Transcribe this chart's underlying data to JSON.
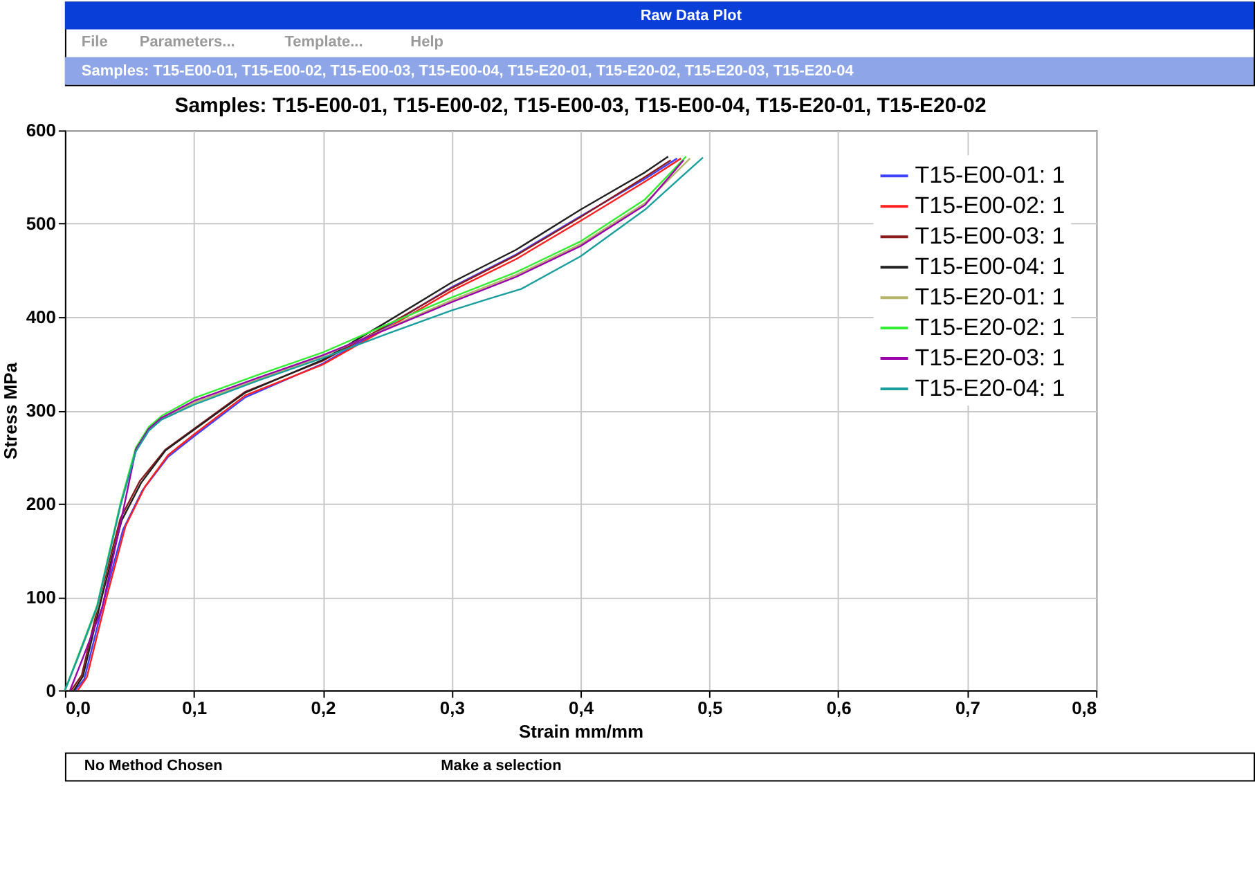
{
  "chart_data": {
    "type": "line",
    "title": "Samples: T15-E00-01, T15-E00-02, T15-E00-03, T15-E00-04, T15-E20-01, T15-E20-02",
    "subtitle": "Samples: T15-E00-01, T15-E00-02, T15-E00-03, T15-E00-04, T15-E20-01, T15-E20-02, T15-E20-03, T15-E20-04",
    "annotations": [
      "Raw Data Plot",
      "File",
      "Parameters...",
      "Template...",
      "Help",
      "No Method Chosen",
      "Make a selection"
    ],
    "xlabel": "Strain mm/mm",
    "ylabel": "Stress MPa",
    "xlim": [
      0,
      0.8
    ],
    "ylim": [
      0,
      600
    ],
    "xticks": [
      {
        "value": 0,
        "label": "0,0"
      },
      {
        "value": 0.1,
        "label": "0,1"
      },
      {
        "value": 0.2,
        "label": "0,2"
      },
      {
        "value": 0.3,
        "label": "0,3"
      },
      {
        "value": 0.4,
        "label": "0,4"
      },
      {
        "value": 0.5,
        "label": "0,5"
      },
      {
        "value": 0.6,
        "label": "0,6"
      },
      {
        "value": 0.7,
        "label": "0,7"
      },
      {
        "value": 0.8,
        "label": "0,8"
      }
    ],
    "yticks": [
      0,
      100,
      200,
      300,
      400,
      500,
      600
    ],
    "grid": true,
    "legend": "top right",
    "series": [
      {
        "name": "T15-E00-01: 1",
        "color": "#4040ff",
        "x": [
          0.008,
          0.015,
          0.03,
          0.045,
          0.06,
          0.08,
          0.1,
          0.14,
          0.2,
          0.25,
          0.3,
          0.35,
          0.4,
          0.45,
          0.475
        ],
        "values": [
          0,
          12,
          95,
          172,
          214,
          250,
          272,
          314,
          350,
          390,
          432,
          467,
          508,
          548,
          570
        ]
      },
      {
        "name": "T15-E00-02: 1",
        "color": "#ff2020",
        "x": [
          0.01,
          0.017,
          0.032,
          0.047,
          0.062,
          0.08,
          0.1,
          0.14,
          0.2,
          0.25,
          0.3,
          0.35,
          0.4,
          0.45,
          0.478
        ],
        "values": [
          0,
          14,
          98,
          176,
          218,
          252,
          274,
          316,
          349,
          388,
          428,
          462,
          503,
          545,
          570
        ]
      },
      {
        "name": "T15-E00-03: 1",
        "color": "#8b1a1a",
        "x": [
          0.005,
          0.013,
          0.028,
          0.043,
          0.058,
          0.078,
          0.1,
          0.14,
          0.2,
          0.25,
          0.3,
          0.35,
          0.4,
          0.45,
          0.47
        ],
        "values": [
          0,
          16,
          104,
          184,
          224,
          258,
          280,
          320,
          353,
          391,
          431,
          466,
          507,
          550,
          568
        ]
      },
      {
        "name": "T15-E00-04: 1",
        "color": "#202020",
        "x": [
          0.007,
          0.014,
          0.029,
          0.044,
          0.059,
          0.078,
          0.1,
          0.14,
          0.2,
          0.25,
          0.3,
          0.35,
          0.4,
          0.45,
          0.468
        ],
        "values": [
          0,
          15,
          102,
          182,
          222,
          257,
          279,
          319,
          354,
          395,
          437,
          472,
          515,
          555,
          572
        ]
      },
      {
        "name": "T15-E20-01: 1",
        "color": "#b5b56a",
        "x": [
          0,
          0.01,
          0.025,
          0.043,
          0.055,
          0.065,
          0.075,
          0.1,
          0.15,
          0.2,
          0.25,
          0.3,
          0.35,
          0.4,
          0.45,
          0.485
        ],
        "values": [
          0,
          34,
          88,
          197,
          256,
          279,
          291,
          308,
          333,
          358,
          388,
          418,
          445,
          478,
          522,
          570
        ]
      },
      {
        "name": "T15-E20-02: 1",
        "color": "#33ee33",
        "x": [
          0,
          0.01,
          0.025,
          0.043,
          0.055,
          0.065,
          0.075,
          0.1,
          0.15,
          0.2,
          0.25,
          0.3,
          0.35,
          0.4,
          0.45,
          0.482
        ],
        "values": [
          0,
          36,
          91,
          200,
          260,
          282,
          294,
          313,
          338,
          362,
          392,
          421,
          448,
          481,
          526,
          572
        ]
      },
      {
        "name": "T15-E20-03: 1",
        "color": "#9900aa",
        "x": [
          0.004,
          0.014,
          0.029,
          0.046,
          0.055,
          0.065,
          0.075,
          0.1,
          0.15,
          0.2,
          0.25,
          0.3,
          0.35,
          0.4,
          0.45,
          0.48
        ],
        "values": [
          0,
          35,
          89,
          198,
          258,
          280,
          292,
          310,
          335,
          359,
          387,
          416,
          443,
          476,
          520,
          568
        ]
      },
      {
        "name": "T15-E20-04: 1",
        "color": "#1a9e9e",
        "x": [
          0,
          0.01,
          0.025,
          0.043,
          0.055,
          0.065,
          0.075,
          0.1,
          0.15,
          0.2,
          0.25,
          0.3,
          0.33,
          0.354,
          0.4,
          0.45,
          0.495
        ],
        "values": [
          0,
          35,
          90,
          198,
          256,
          278,
          290,
          306,
          332,
          356,
          382,
          407,
          420,
          430,
          465,
          515,
          571
        ]
      }
    ]
  }
}
